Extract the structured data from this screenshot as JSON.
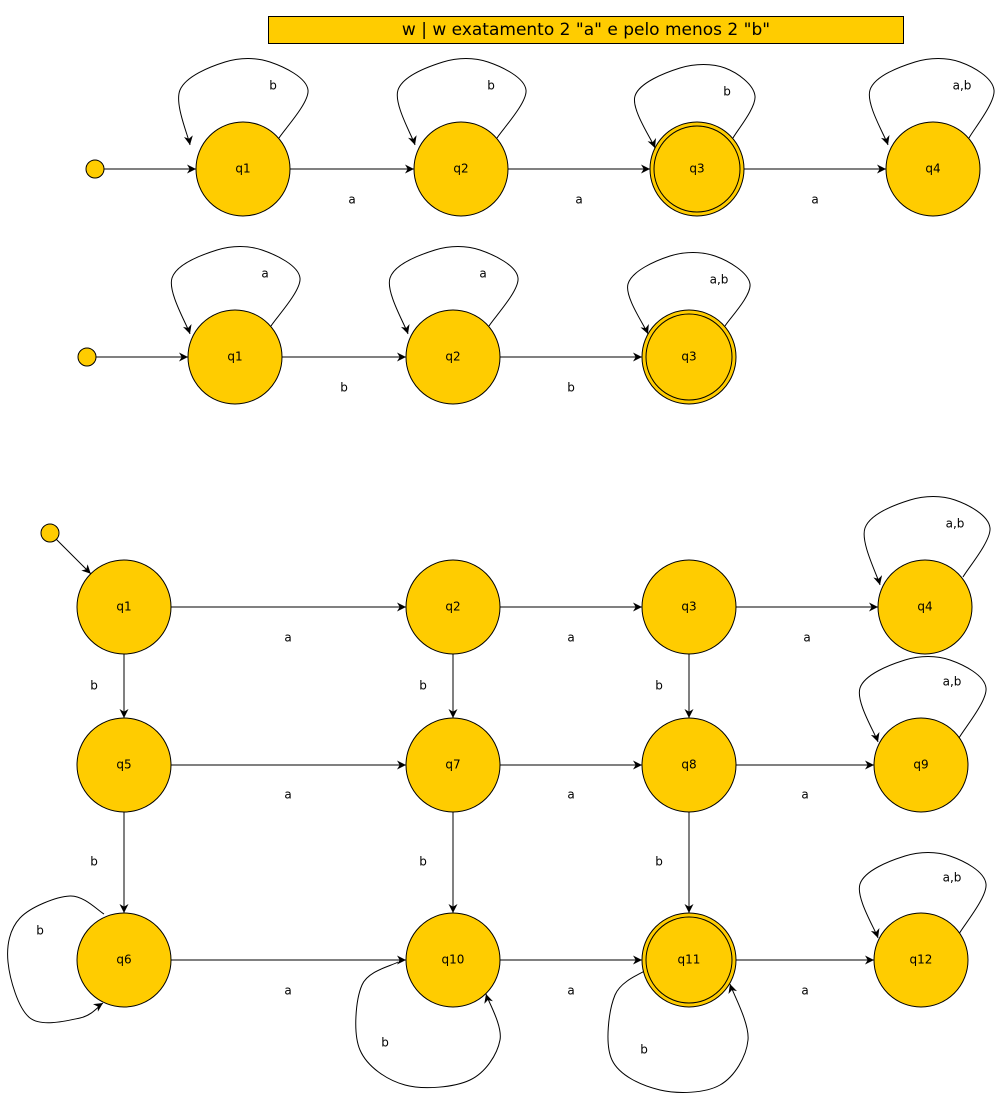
{
  "title": "w | w exatamento 2 \"a\" e pelo menos 2 \"b\"",
  "colors": {
    "state_fill": "#ffcc00",
    "stroke": "#000000",
    "background": "#ffffff"
  },
  "automata": [
    {
      "id": "a1",
      "start": "q1",
      "states": [
        {
          "id": "q1",
          "label": "q1",
          "accepting": false
        },
        {
          "id": "q2",
          "label": "q2",
          "accepting": false
        },
        {
          "id": "q3",
          "label": "q3",
          "accepting": true
        },
        {
          "id": "q4",
          "label": "q4",
          "accepting": false
        }
      ],
      "transitions": [
        {
          "from": "q1",
          "to": "q1",
          "label": "b"
        },
        {
          "from": "q1",
          "to": "q2",
          "label": "a"
        },
        {
          "from": "q2",
          "to": "q2",
          "label": "b"
        },
        {
          "from": "q2",
          "to": "q3",
          "label": "a"
        },
        {
          "from": "q3",
          "to": "q3",
          "label": "b"
        },
        {
          "from": "q3",
          "to": "q4",
          "label": "a"
        },
        {
          "from": "q4",
          "to": "q4",
          "label": "a,b"
        }
      ]
    },
    {
      "id": "a2",
      "start": "q1",
      "states": [
        {
          "id": "q1",
          "label": "q1",
          "accepting": false
        },
        {
          "id": "q2",
          "label": "q2",
          "accepting": false
        },
        {
          "id": "q3",
          "label": "q3",
          "accepting": true
        }
      ],
      "transitions": [
        {
          "from": "q1",
          "to": "q1",
          "label": "a"
        },
        {
          "from": "q1",
          "to": "q2",
          "label": "b"
        },
        {
          "from": "q2",
          "to": "q2",
          "label": "a"
        },
        {
          "from": "q2",
          "to": "q3",
          "label": "b"
        },
        {
          "from": "q3",
          "to": "q3",
          "label": "a,b"
        }
      ]
    },
    {
      "id": "a3",
      "start": "q1",
      "states": [
        {
          "id": "q1",
          "label": "q1",
          "accepting": false
        },
        {
          "id": "q2",
          "label": "q2",
          "accepting": false
        },
        {
          "id": "q3",
          "label": "q3",
          "accepting": false
        },
        {
          "id": "q4",
          "label": "q4",
          "accepting": false
        },
        {
          "id": "q5",
          "label": "q5",
          "accepting": false
        },
        {
          "id": "q7",
          "label": "q7",
          "accepting": false
        },
        {
          "id": "q8",
          "label": "q8",
          "accepting": false
        },
        {
          "id": "q9",
          "label": "q9",
          "accepting": false
        },
        {
          "id": "q6",
          "label": "q6",
          "accepting": false
        },
        {
          "id": "q10",
          "label": "q10",
          "accepting": false
        },
        {
          "id": "q11",
          "label": "q11",
          "accepting": true
        },
        {
          "id": "q12",
          "label": "q12",
          "accepting": false
        }
      ],
      "transitions": [
        {
          "from": "q1",
          "to": "q2",
          "label": "a"
        },
        {
          "from": "q2",
          "to": "q3",
          "label": "a"
        },
        {
          "from": "q3",
          "to": "q4",
          "label": "a"
        },
        {
          "from": "q4",
          "to": "q4",
          "label": "a,b"
        },
        {
          "from": "q1",
          "to": "q5",
          "label": "b"
        },
        {
          "from": "q2",
          "to": "q7",
          "label": "b"
        },
        {
          "from": "q3",
          "to": "q8",
          "label": "b"
        },
        {
          "from": "q5",
          "to": "q7",
          "label": "a"
        },
        {
          "from": "q7",
          "to": "q8",
          "label": "a"
        },
        {
          "from": "q8",
          "to": "q9",
          "label": "a"
        },
        {
          "from": "q9",
          "to": "q9",
          "label": "a,b"
        },
        {
          "from": "q5",
          "to": "q6",
          "label": "b"
        },
        {
          "from": "q7",
          "to": "q10",
          "label": "b"
        },
        {
          "from": "q8",
          "to": "q11",
          "label": "b"
        },
        {
          "from": "q6",
          "to": "q6",
          "label": "b"
        },
        {
          "from": "q6",
          "to": "q10",
          "label": "a"
        },
        {
          "from": "q10",
          "to": "q10",
          "label": "b"
        },
        {
          "from": "q10",
          "to": "q11",
          "label": "a"
        },
        {
          "from": "q11",
          "to": "q11",
          "label": "b"
        },
        {
          "from": "q11",
          "to": "q12",
          "label": "a"
        },
        {
          "from": "q12",
          "to": "q12",
          "label": "a,b"
        }
      ]
    }
  ]
}
